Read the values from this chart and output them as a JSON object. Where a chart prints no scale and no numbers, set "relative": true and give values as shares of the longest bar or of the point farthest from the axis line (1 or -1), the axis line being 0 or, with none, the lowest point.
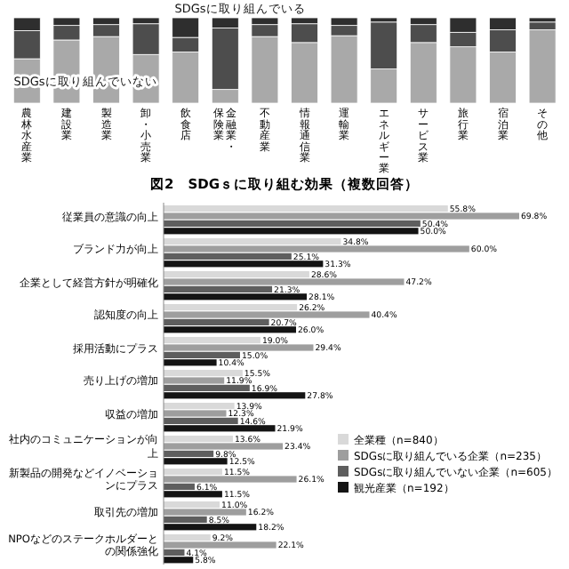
{
  "chart_data": [
    {
      "type": "bar",
      "stacked": true,
      "relative": true,
      "categories": [
        "農林水産業",
        "建設業",
        "製造業",
        "卸・小売業",
        "飲食店",
        "金融業・保険業",
        "不動産業",
        "情報通信業",
        "運輸業",
        "エネルギー業",
        "サービス業",
        "旅行業",
        "宿泊業",
        "その他"
      ],
      "series": [
        {
          "name": "SDGsに取り組んでいない",
          "color": "#a9a9a9",
          "values": [
            0.52,
            0.74,
            0.78,
            0.57,
            0.6,
            0.16,
            0.78,
            0.71,
            0.79,
            0.4,
            0.71,
            0.66,
            0.6,
            0.86
          ]
        },
        {
          "name": "SDGsに取り組んでいる",
          "color": "#4d4d4d",
          "values": [
            0.33,
            0.17,
            0.14,
            0.36,
            0.17,
            0.72,
            0.14,
            0.22,
            0.12,
            0.55,
            0.21,
            0.17,
            0.26,
            0.09
          ]
        },
        {
          "color": "#2e2e2e",
          "values": [
            0.15,
            0.09,
            0.08,
            0.07,
            0.23,
            0.12,
            0.08,
            0.07,
            0.09,
            0.05,
            0.08,
            0.17,
            0.14,
            0.05
          ]
        }
      ]
    },
    {
      "type": "bar",
      "orientation": "horizontal",
      "title": "図2　SDGｓに取り組む効果（複数回答）",
      "legend": "right",
      "categories": [
        "従業員の意識の向上",
        "ブランド力が向上",
        "企業として経営方針が明確化",
        "認知度の向上",
        "採用活動にプラス",
        "売り上げの増加",
        "収益の増加",
        "社内のコミュニケーションが向上",
        "新製品の開発などイノベーションにプラス",
        "取引先の増加",
        "NPOなどのステークホルダーとの関係強化"
      ],
      "series": [
        {
          "name": "全業種（n=840）",
          "color": "#d9d9d9",
          "values": [
            55.8,
            34.8,
            28.6,
            26.2,
            19.0,
            15.5,
            13.9,
            13.6,
            11.5,
            11.0,
            9.2
          ],
          "value_labels": [
            "55.8%",
            "34.8%",
            "28.6%",
            "26.2%",
            "19.0%",
            "15.5%",
            "13.9%",
            "13.6%",
            "11.5%",
            "11.0%",
            "9.2%"
          ]
        },
        {
          "name": "SDGsに取り組んでいる企業（n=235）",
          "color": "#9e9e9e",
          "values": [
            69.8,
            60.0,
            47.2,
            40.4,
            29.4,
            11.9,
            12.3,
            23.4,
            26.1,
            16.2,
            22.1
          ],
          "value_labels": [
            "69.8%",
            "60.0%",
            "47.2%",
            "40.4%",
            "29.4%",
            "11.9%",
            "12.3%",
            "23.4%",
            "26.1%",
            "16.2%",
            "22.1%"
          ]
        },
        {
          "name": "SDGsに取り組んでいない企業（n=605）",
          "color": "#5e5e5e",
          "values": [
            50.4,
            25.1,
            21.3,
            20.7,
            15.0,
            16.9,
            14.6,
            9.8,
            6.1,
            8.5,
            4.1
          ],
          "value_labels": [
            "50.4%",
            "25.1%",
            "21.3%",
            "20.7%",
            "15.0%",
            "16.9%",
            "14.6%",
            "9.8%",
            "6.1%",
            "8.5%",
            "4.1%"
          ]
        },
        {
          "name": "観光産業（n=192）",
          "color": "#141414",
          "values": [
            50.0,
            31.3,
            28.1,
            26.0,
            10.4,
            27.8,
            21.9,
            12.5,
            11.5,
            18.2,
            5.8
          ],
          "value_labels": [
            "50.0%",
            "31.3%",
            "28.1%",
            "26.0%",
            "10.4%",
            "27.8%",
            "21.9%",
            "12.5%",
            "11.5%",
            "18.2%",
            "5.8%"
          ]
        }
      ]
    }
  ]
}
